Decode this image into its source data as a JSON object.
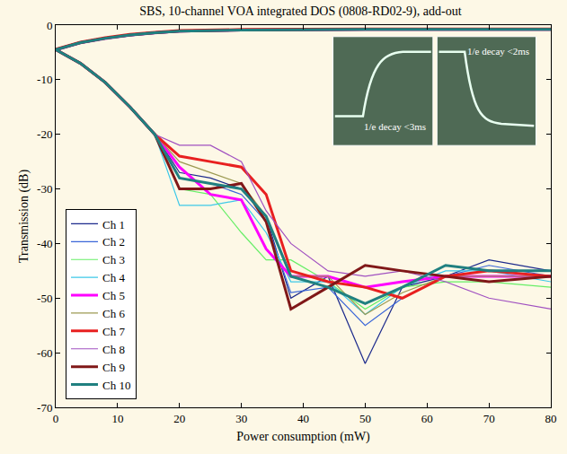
{
  "chart_data": {
    "type": "line",
    "title": "SBS, 10-channel VOA integrated DOS (0808-RD02-9), add-out",
    "x_label": "Power consumption (mW)",
    "y_label": "Transmission (dB)",
    "annotations": [
      "1/e decay <3ms",
      "1/e decay <2ms"
    ],
    "x": [
      0,
      4,
      8,
      12,
      16,
      20,
      25,
      30,
      34,
      38,
      44,
      50,
      56,
      63,
      70,
      80,
      null,
      0,
      4,
      8,
      12,
      16,
      20,
      30,
      40,
      50,
      60,
      70,
      80
    ],
    "xlim": [
      0,
      80
    ],
    "xticks": [
      0,
      10,
      20,
      30,
      40,
      50,
      60,
      70,
      80
    ],
    "ylim": [
      -70,
      0
    ],
    "yticks": [
      -70,
      -60,
      -50,
      -40,
      -30,
      -20,
      -10,
      0
    ],
    "grid": false,
    "legend": "lower left",
    "series": [
      {
        "name": "Ch 1",
        "color": "#1c2a8c",
        "values": [
          -4.5,
          -7,
          -10.5,
          -15,
          -20,
          -27,
          -28,
          -30,
          -35,
          -50,
          -46,
          -62,
          -48,
          -46,
          -43,
          -45,
          null,
          -4.5,
          -3.2,
          -2.4,
          -1.8,
          -1.4,
          -1.1,
          -0.9,
          -0.8,
          -0.8,
          -0.8,
          -0.8,
          -0.8
        ]
      },
      {
        "name": "Ch 2",
        "color": "#3a66d8",
        "values": [
          -4.5,
          -7,
          -10.5,
          -15,
          -20,
          -28,
          -29,
          -31,
          -36,
          -49,
          -48,
          -55,
          -50,
          -46,
          -44,
          -46,
          null,
          -4.6,
          -3.3,
          -2.5,
          -1.9,
          -1.5,
          -1.1,
          -0.9,
          -0.8,
          -0.8,
          -0.8,
          -0.8,
          -0.8
        ]
      },
      {
        "name": "Ch 3",
        "color": "#66ee66",
        "values": [
          -4.5,
          -7,
          -10.5,
          -15,
          -20,
          -30,
          -31,
          -38,
          -43,
          -43,
          -47,
          -52,
          -48,
          -47,
          -47,
          -48,
          null,
          -4.5,
          -3.2,
          -2.4,
          -1.8,
          -1.4,
          -1.1,
          -0.9,
          -0.8,
          -0.8,
          -0.8,
          -0.8,
          -0.8
        ]
      },
      {
        "name": "Ch 4",
        "color": "#3cc8e8",
        "values": [
          -4.5,
          -7,
          -10.5,
          -15,
          -20,
          -33,
          -33,
          -32,
          -38,
          -47,
          -47,
          -53,
          -48,
          -45,
          -45,
          -47,
          null,
          -4.5,
          -3.2,
          -2.4,
          -1.8,
          -1.4,
          -1.1,
          -0.9,
          -0.8,
          -0.8,
          -0.8,
          -0.8,
          -0.8
        ]
      },
      {
        "name": "Ch 5",
        "color": "#ff00ff",
        "values": [
          -4.5,
          -7,
          -10.5,
          -15,
          -20,
          -26,
          -31,
          -32,
          -41,
          -46,
          -46,
          -48,
          -47,
          -46,
          -46,
          -46,
          null,
          -4.5,
          -3.2,
          -2.4,
          -1.8,
          -1.4,
          -1.1,
          -0.9,
          -0.8,
          -0.8,
          -0.8,
          -0.8,
          -0.8
        ]
      },
      {
        "name": "Ch 6",
        "color": "#9c9a52",
        "values": [
          -4.5,
          -7,
          -10.5,
          -15,
          -20,
          -25,
          -27,
          -29,
          -35,
          -46,
          -46,
          -53,
          -49,
          -46,
          -46,
          -46,
          null,
          -4.5,
          -3.2,
          -2.4,
          -1.8,
          -1.4,
          -1.1,
          -0.9,
          -0.8,
          -0.8,
          -0.8,
          -0.8,
          -0.8
        ]
      },
      {
        "name": "Ch 7",
        "color": "#e82020",
        "values": [
          -4.5,
          -7,
          -10.5,
          -15,
          -20,
          -24,
          -25,
          -26,
          -31,
          -45,
          -47,
          -48,
          -50,
          -46,
          -45,
          -46,
          null,
          -4.4,
          -3.1,
          -2.3,
          -1.7,
          -1.3,
          -1.0,
          -0.8,
          -0.7,
          -0.7,
          -0.7,
          -0.7,
          -0.7
        ]
      },
      {
        "name": "Ch 8",
        "color": "#a050c0",
        "values": [
          -4.5,
          -7,
          -10.5,
          -15,
          -20,
          -22,
          -22,
          -25,
          -34,
          -40,
          -45,
          -46,
          -45,
          -47,
          -50,
          -52,
          null,
          -4.7,
          -3.4,
          -2.6,
          -2.0,
          -1.6,
          -1.2,
          -1.0,
          -0.9,
          -0.9,
          -0.9,
          -0.9,
          -0.9
        ]
      },
      {
        "name": "Ch 9",
        "color": "#801818",
        "values": [
          -4.5,
          -7,
          -10.5,
          -15,
          -20,
          -30,
          -30,
          -29,
          -36,
          -52,
          -48,
          -44,
          -45,
          -46,
          -47,
          -46,
          null,
          -4.5,
          -3.2,
          -2.4,
          -1.8,
          -1.4,
          -1.1,
          -0.9,
          -0.8,
          -0.8,
          -0.8,
          -0.8,
          -0.8
        ]
      },
      {
        "name": "Ch 10",
        "color": "#208080",
        "values": [
          -4.5,
          -7,
          -10.5,
          -15,
          -20,
          -28,
          -29,
          -30,
          -35,
          -46,
          -48,
          -51,
          -48,
          -44,
          -45,
          -45,
          null,
          -4.5,
          -3.2,
          -2.4,
          -1.8,
          -1.4,
          -1.1,
          -0.9,
          -0.8,
          -0.8,
          -0.8,
          -0.8,
          -0.8
        ]
      }
    ]
  }
}
